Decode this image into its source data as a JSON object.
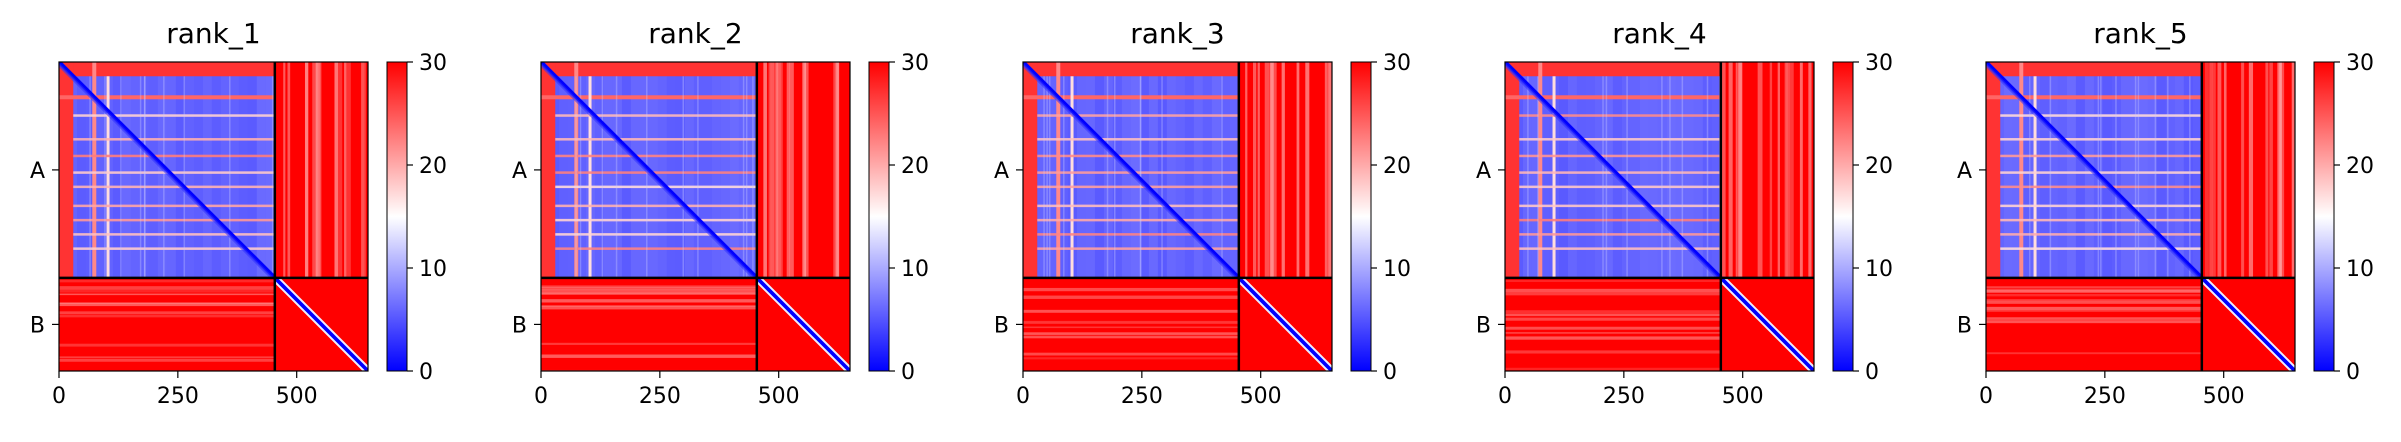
{
  "chart_data": {
    "type": "heatmap",
    "colormap": {
      "name": "bwr",
      "low": "#0000ff",
      "mid": "#ffffff",
      "high": "#ff0000"
    },
    "color_range": [
      0,
      30
    ],
    "colorbar_ticks": [
      "0",
      "10",
      "20",
      "30"
    ],
    "x_range": [
      0,
      650
    ],
    "x_ticks": [
      0,
      250,
      500
    ],
    "x_tick_labels": [
      "0",
      "250",
      "500"
    ],
    "chains": [
      {
        "label": "A",
        "start": 0,
        "end": 454
      },
      {
        "label": "B",
        "start": 454,
        "end": 650
      }
    ],
    "panels": [
      {
        "title": "rank_1"
      },
      {
        "title": "rank_2"
      },
      {
        "title": "rank_3"
      },
      {
        "title": "rank_4"
      },
      {
        "title": "rank_5"
      }
    ]
  }
}
